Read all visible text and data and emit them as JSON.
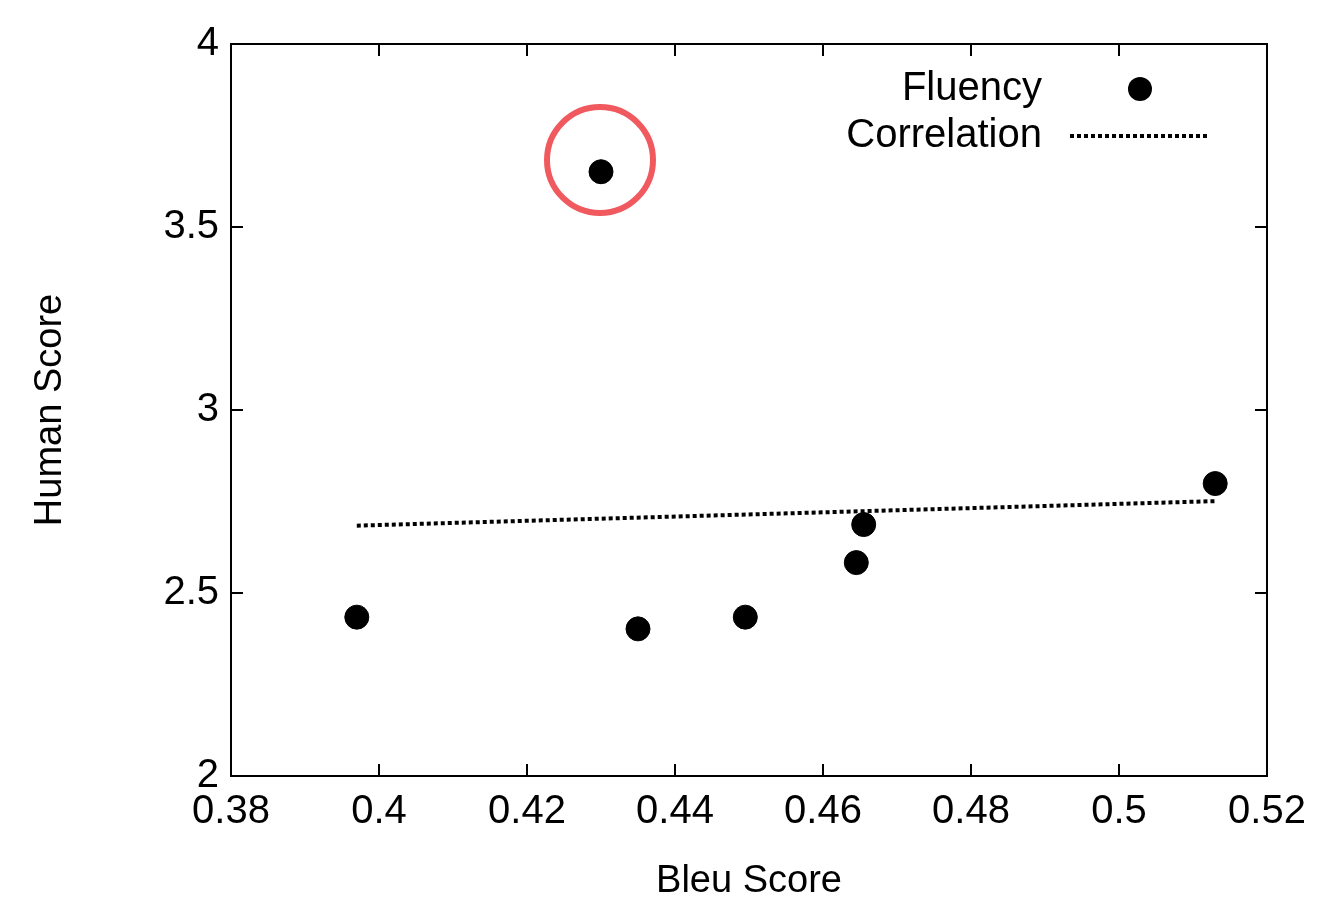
{
  "chart_data": {
    "type": "scatter",
    "xlabel": "Bleu Score",
    "ylabel": "Human Score",
    "xlim": [
      0.38,
      0.52
    ],
    "ylim": [
      2,
      4
    ],
    "xticks": [
      0.38,
      0.4,
      0.42,
      0.44,
      0.46,
      0.48,
      0.5,
      0.52
    ],
    "yticks": [
      2,
      2.5,
      3,
      3.5,
      4
    ],
    "grid": false,
    "legend": "top right",
    "series": [
      {
        "name": "Fluency",
        "color": "#000000",
        "marker": "circle",
        "x": [
          0.397,
          0.43,
          0.435,
          0.4495,
          0.4645,
          0.4655,
          0.513
        ],
        "values": [
          2.434,
          3.651,
          2.402,
          2.434,
          2.583,
          2.687,
          2.799
        ]
      },
      {
        "name": "Correlation",
        "type": "line",
        "color": "#000000",
        "line_style": "dotted",
        "marker": "none",
        "x": [
          0.397,
          0.513
        ],
        "values": [
          2.684,
          2.751
        ]
      }
    ]
  }
}
